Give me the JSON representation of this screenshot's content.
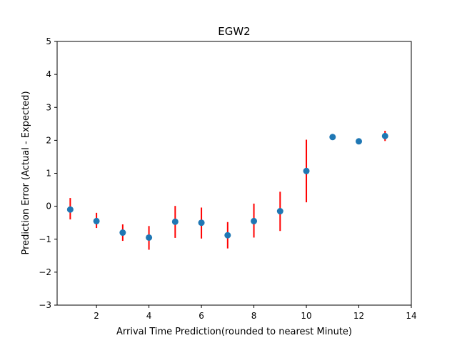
{
  "chart_data": {
    "type": "scatter",
    "title": "EGW2",
    "xlabel": "Arrival Time Prediction(rounded to nearest Minute)",
    "ylabel": "Prediction Error (Actual - Expected)",
    "xlim": [
      0.5,
      14
    ],
    "ylim": [
      -3,
      5
    ],
    "xticks": [
      2,
      4,
      6,
      8,
      10,
      12,
      14
    ],
    "yticks": [
      -3,
      -2,
      -1,
      0,
      1,
      2,
      3,
      4,
      5
    ],
    "grid": false,
    "series": [
      {
        "x": [
          1,
          2,
          3,
          4,
          5,
          6,
          7,
          8,
          9,
          10,
          11,
          12,
          13
        ],
        "y": [
          -0.1,
          -0.45,
          -0.8,
          -0.95,
          -0.47,
          -0.5,
          -0.88,
          -0.45,
          -0.15,
          1.07,
          2.1,
          1.97,
          2.13
        ],
        "err_low": [
          -0.4,
          -0.66,
          -1.05,
          -1.32,
          -0.96,
          -0.98,
          -1.28,
          -0.95,
          -0.75,
          0.12,
          2.03,
          1.97,
          1.98
        ],
        "err_high": [
          0.25,
          -0.2,
          -0.55,
          -0.6,
          0.01,
          -0.04,
          -0.48,
          0.08,
          0.44,
          2.02,
          2.16,
          1.97,
          2.29
        ],
        "marker_color": "#1f77b4",
        "error_color": "#ff0000"
      }
    ]
  }
}
